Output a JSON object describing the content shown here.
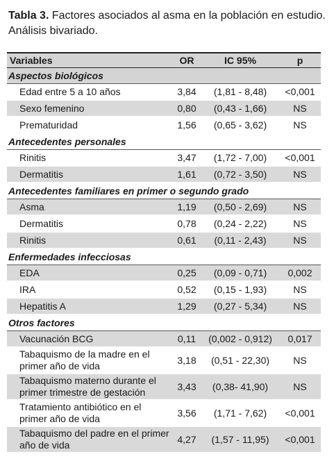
{
  "title": {
    "label": "Tabla 3.",
    "text": "Factores asociados al asma en la población en estudio. Análisis bivariado."
  },
  "table": {
    "header": [
      "Variables",
      "OR",
      "IC 95%",
      "p"
    ],
    "sections": [
      {
        "title": "Aspectos biológicos",
        "rows": [
          [
            "Edad entre 5 a 10 años",
            "3,84",
            "(1,81 - 8,48)",
            "<0,001"
          ],
          [
            "Sexo femenino",
            "0,80",
            "(0,43 - 1,66)",
            "NS"
          ],
          [
            "Prematuridad",
            "1,56",
            "(0,65 - 3,62)",
            "NS"
          ]
        ]
      },
      {
        "title": "Antecedentes personales",
        "rows": [
          [
            "Rinitis",
            "3,47",
            "(1,72 - 7,00)",
            "<0,001"
          ],
          [
            "Dermatitis",
            "1,61",
            "(0,72 - 3,50)",
            "NS"
          ]
        ]
      },
      {
        "title": "Antecedentes familiares en primer o segundo grado",
        "rows": [
          [
            "Asma",
            "1,19",
            "(0,50 - 2,69)",
            "NS"
          ],
          [
            "Dermatitis",
            "0,78",
            "(0,24 - 2,22)",
            "NS"
          ],
          [
            "Rinitis",
            "0,61",
            "(0,11 - 2,43)",
            "NS"
          ]
        ]
      },
      {
        "title": "Enfermedades infecciosas",
        "rows": [
          [
            "EDA",
            "0,25",
            "(0,09 - 0,71)",
            "0,002"
          ],
          [
            "IRA",
            "0,52",
            "(0,15 - 1,93)",
            "NS"
          ],
          [
            "Hepatitis A",
            "1,29",
            "(0,27 - 5,34)",
            "NS"
          ]
        ]
      },
      {
        "title": "Otros factores",
        "rows": [
          [
            "Vacunación BCG",
            "0,11",
            "(0,002 - 0,912)",
            "0,017"
          ],
          [
            "Tabaquismo de la madre en el primer año de vida",
            "3,18",
            "(0,51 - 22,30)",
            "NS"
          ],
          [
            "Tabaquismo materno durante el primer trimestre de gestación",
            "3,43",
            "(0,38- 41,90)",
            "NS"
          ],
          [
            "Tratamiento antibiótico en el primer año de vida",
            "3,56",
            "(1,71 - 7,62)",
            "<0,001"
          ],
          [
            "Tabaquismo del padre en el primer año de vida",
            "4,27",
            "(1,57 - 11,95)",
            "<0,001"
          ]
        ]
      }
    ]
  }
}
